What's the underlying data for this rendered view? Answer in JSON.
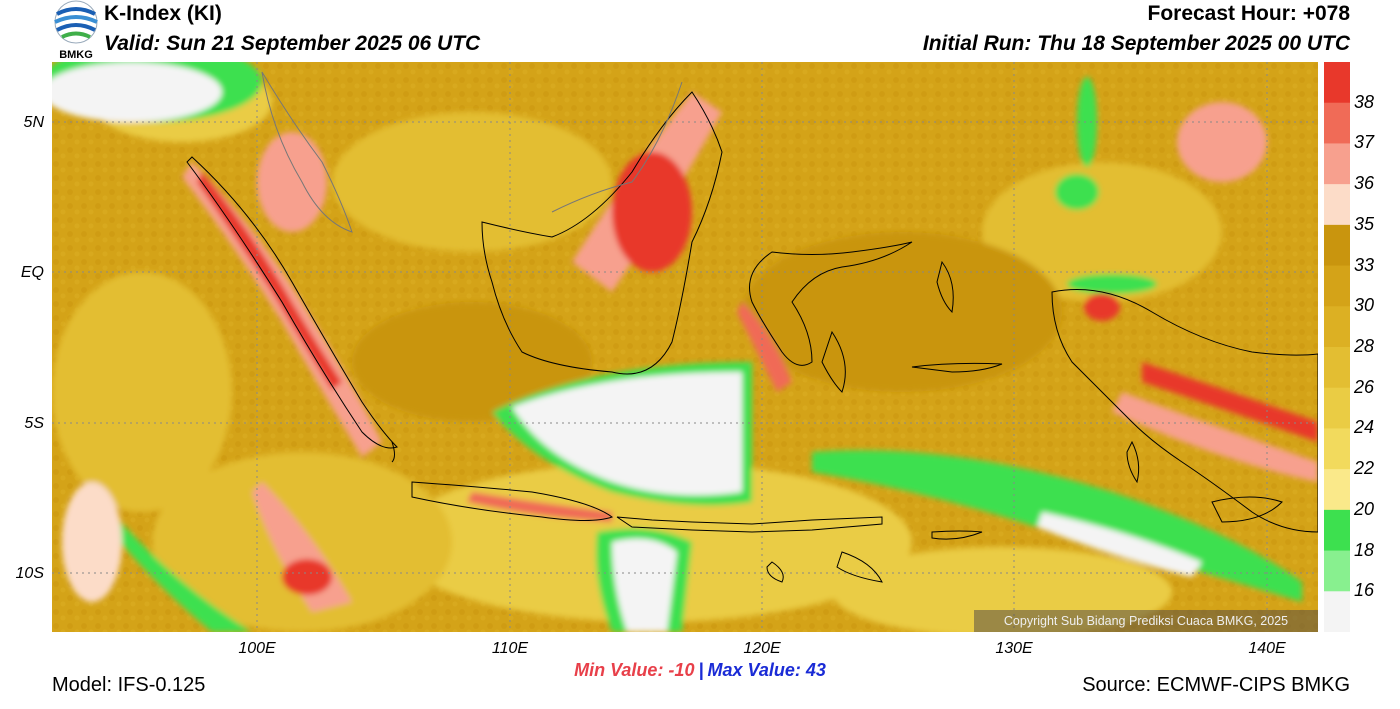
{
  "header": {
    "title": "K-Index (KI)",
    "valid": "Valid: Sun 21 September 2025 06 UTC",
    "forecast_hour": "Forecast Hour: +078",
    "initial_run": "Initial Run: Thu 18 September 2025 00 UTC",
    "logo_text": "BMKG"
  },
  "axes": {
    "lat_labels": [
      "5N",
      "EQ",
      "5S",
      "10S"
    ],
    "lon_labels": [
      "100E",
      "110E",
      "120E",
      "130E",
      "140E"
    ]
  },
  "colorbar": {
    "labels": [
      "38",
      "37",
      "36",
      "35",
      "33",
      "30",
      "28",
      "26",
      "24",
      "22",
      "20",
      "18",
      "16"
    ],
    "colors": [
      "#e8382b",
      "#f06b57",
      "#f7a08e",
      "#fcdcc8",
      "#c9950e",
      "#d4a318",
      "#dcb023",
      "#e3be32",
      "#eacc44",
      "#f2da5d",
      "#fae98a",
      "#3de04f",
      "#88f08f",
      "#f4f4f4"
    ]
  },
  "stats": {
    "min_label": "Min Value: -10",
    "separator": "|",
    "max_label": "Max Value:  43"
  },
  "footer": {
    "model": "Model: IFS-0.125",
    "source": "Source: ECMWF-CIPS BMKG",
    "copyright": "Copyright Sub Bidang Prediksi Cuaca BMKG, 2025"
  }
}
